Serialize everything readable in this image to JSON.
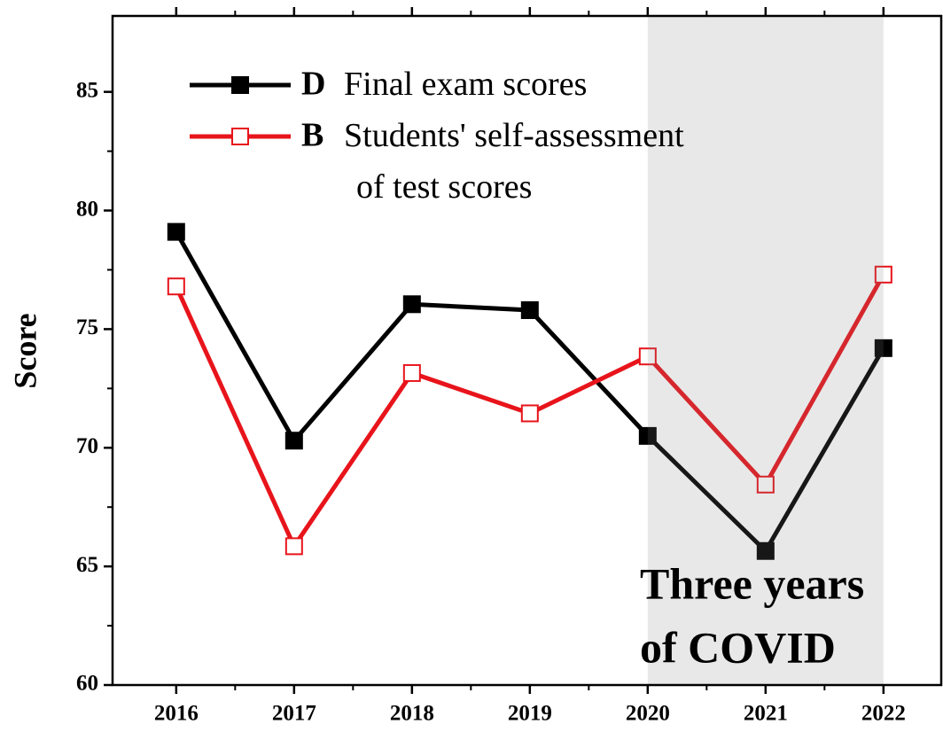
{
  "chart_data": {
    "type": "line",
    "y_label": "Score",
    "x": [
      2016,
      2017,
      2018,
      2019,
      2020,
      2021,
      2022
    ],
    "xlim": [
      2015.46,
      2022.49
    ],
    "xticks": [
      2016,
      2017,
      2018,
      2019,
      2020,
      2021,
      2022
    ],
    "ylim": [
      60,
      88.2
    ],
    "yticks": [
      60,
      65,
      70,
      75,
      80,
      85
    ],
    "series": [
      {
        "letter": "D",
        "name": "Final exam scores",
        "color": "#000000",
        "marker": "filled-square",
        "values": [
          79.1,
          70.3,
          76.05,
          75.8,
          70.5,
          65.65,
          74.2
        ]
      },
      {
        "letter": "B",
        "name": "Students' self-assessment of test scores",
        "color": "#e8141b",
        "marker": "open-square",
        "values": [
          76.8,
          65.85,
          73.15,
          71.45,
          73.85,
          68.45,
          77.3
        ]
      }
    ],
    "shaded_span": [
      2020,
      2022
    ],
    "annotation": [
      "Three years",
      "of COVID"
    ]
  }
}
